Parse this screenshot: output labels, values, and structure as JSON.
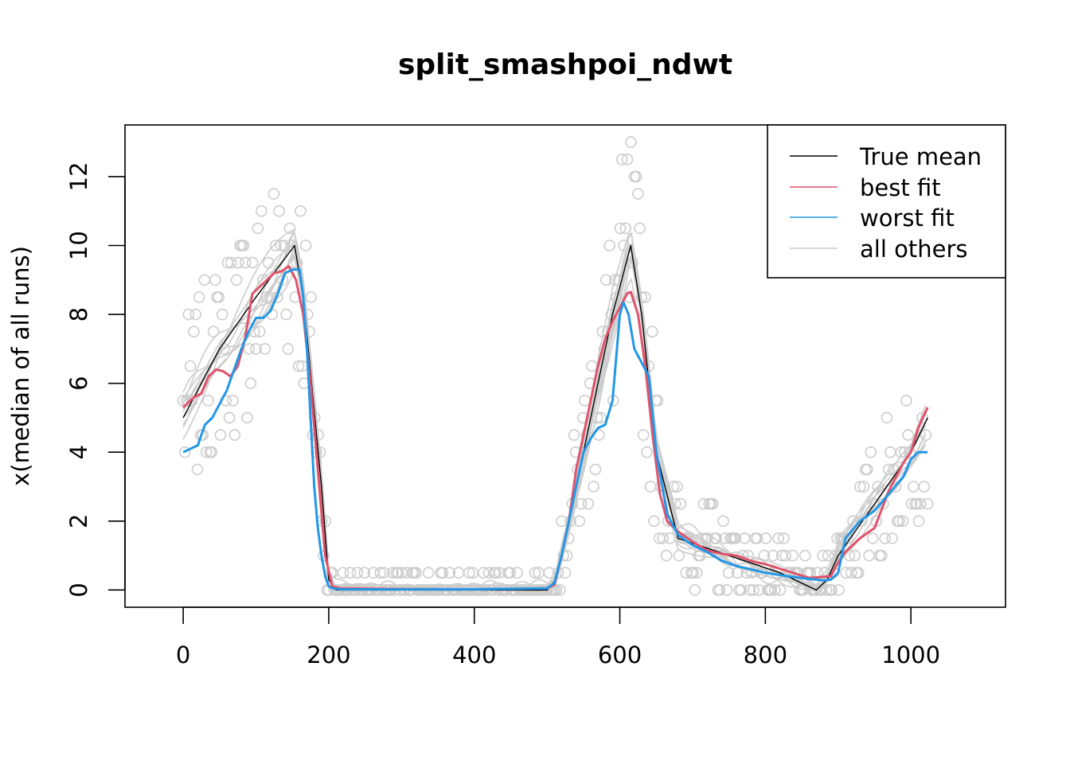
{
  "chart_data": {
    "type": "line",
    "title": "split_smashpoi_ndwt",
    "xlabel": "",
    "ylabel": "x(median of all runs)",
    "xlim": [
      -80,
      1130
    ],
    "ylim": [
      -0.5,
      13.5
    ],
    "xticks": [
      0,
      200,
      400,
      600,
      800,
      1000
    ],
    "yticks": [
      0,
      2,
      4,
      6,
      8,
      10,
      12
    ],
    "xtick_labels": [
      "0",
      "200",
      "400",
      "600",
      "800",
      "1000"
    ],
    "ytick_labels": [
      "0",
      "2",
      "4",
      "6",
      "8",
      "10",
      "12"
    ],
    "grid": false,
    "legend_position": "top-right",
    "colors": {
      "true_mean": "#000000",
      "best_fit": "#DF536B",
      "worst_fit": "#2297E6",
      "all_others": "#CCCCCC"
    },
    "legend": [
      "True mean",
      "best fit",
      "worst fit",
      "all others"
    ],
    "series": [
      {
        "name": "True mean",
        "color": "#000000",
        "x": [
          0,
          50,
          100,
          153,
          165,
          190,
          200,
          210,
          500,
          512,
          525,
          560,
          590,
          615,
          630,
          650,
          680,
          750,
          820,
          870,
          885,
          900,
          950,
          1000,
          1023
        ],
        "y": [
          5.0,
          7.0,
          8.5,
          10.0,
          8.5,
          3.0,
          0.3,
          0.0,
          0.0,
          0.3,
          1.5,
          5.0,
          8.0,
          10.0,
          8.0,
          4.0,
          1.5,
          1.0,
          0.5,
          0.0,
          0.3,
          1.0,
          2.5,
          4.0,
          5.0
        ]
      },
      {
        "name": "best fit",
        "color": "#DF536B",
        "x": [
          0,
          15,
          25,
          35,
          45,
          55,
          65,
          75,
          85,
          95,
          105,
          115,
          125,
          135,
          145,
          155,
          165,
          175,
          185,
          195,
          205,
          215,
          300,
          400,
          500,
          510,
          520,
          530,
          540,
          550,
          560,
          570,
          580,
          590,
          600,
          610,
          615,
          625,
          635,
          645,
          655,
          665,
          680,
          700,
          720,
          740,
          760,
          780,
          800,
          830,
          860,
          890,
          900,
          910,
          930,
          950,
          970,
          990,
          1000,
          1010,
          1023
        ],
        "y": [
          5.3,
          5.6,
          5.7,
          6.2,
          6.4,
          6.35,
          6.2,
          6.5,
          7.3,
          8.6,
          8.8,
          9.0,
          9.2,
          9.25,
          9.4,
          9.0,
          8.0,
          6.0,
          3.5,
          1.0,
          0.1,
          0.05,
          0.03,
          0.02,
          0.05,
          0.15,
          1.0,
          2.0,
          3.5,
          4.5,
          5.5,
          6.5,
          7.3,
          7.8,
          8.2,
          8.6,
          8.65,
          8.0,
          6.5,
          4.5,
          2.8,
          2.0,
          1.7,
          1.4,
          1.15,
          1.05,
          1.0,
          0.85,
          0.75,
          0.55,
          0.35,
          0.4,
          0.8,
          1.1,
          1.5,
          1.8,
          2.9,
          3.7,
          4.0,
          4.7,
          5.3
        ]
      },
      {
        "name": "worst fit",
        "color": "#2297E6",
        "x": [
          0,
          10,
          20,
          30,
          40,
          50,
          60,
          70,
          80,
          90,
          100,
          110,
          120,
          130,
          140,
          150,
          160,
          165,
          170,
          175,
          180,
          185,
          190,
          195,
          200,
          205,
          215,
          300,
          400,
          500,
          510,
          520,
          530,
          540,
          550,
          560,
          570,
          580,
          590,
          600,
          605,
          612,
          620,
          630,
          640,
          650,
          665,
          680,
          700,
          720,
          740,
          760,
          780,
          800,
          830,
          860,
          880,
          890,
          900,
          910,
          930,
          950,
          970,
          990,
          1000,
          1010,
          1023
        ],
        "y": [
          4.0,
          4.1,
          4.2,
          4.8,
          5.0,
          5.4,
          5.8,
          6.4,
          7.0,
          7.5,
          7.9,
          7.9,
          8.1,
          8.6,
          9.2,
          9.3,
          9.3,
          8.5,
          7.0,
          5.0,
          3.0,
          1.8,
          1.0,
          0.4,
          0.1,
          0.05,
          0.02,
          0.02,
          0.02,
          0.05,
          0.2,
          1.0,
          2.0,
          3.0,
          4.0,
          4.4,
          4.7,
          4.8,
          5.5,
          8.0,
          8.35,
          8.0,
          7.0,
          6.6,
          6.2,
          4.0,
          2.2,
          1.6,
          1.3,
          1.1,
          0.85,
          0.7,
          0.6,
          0.5,
          0.4,
          0.32,
          0.28,
          0.3,
          0.5,
          1.5,
          2.0,
          2.3,
          2.8,
          3.3,
          3.8,
          4.0,
          4.0
        ]
      }
    ],
    "other_runs_count": 10,
    "observed_points_count": 420
  }
}
